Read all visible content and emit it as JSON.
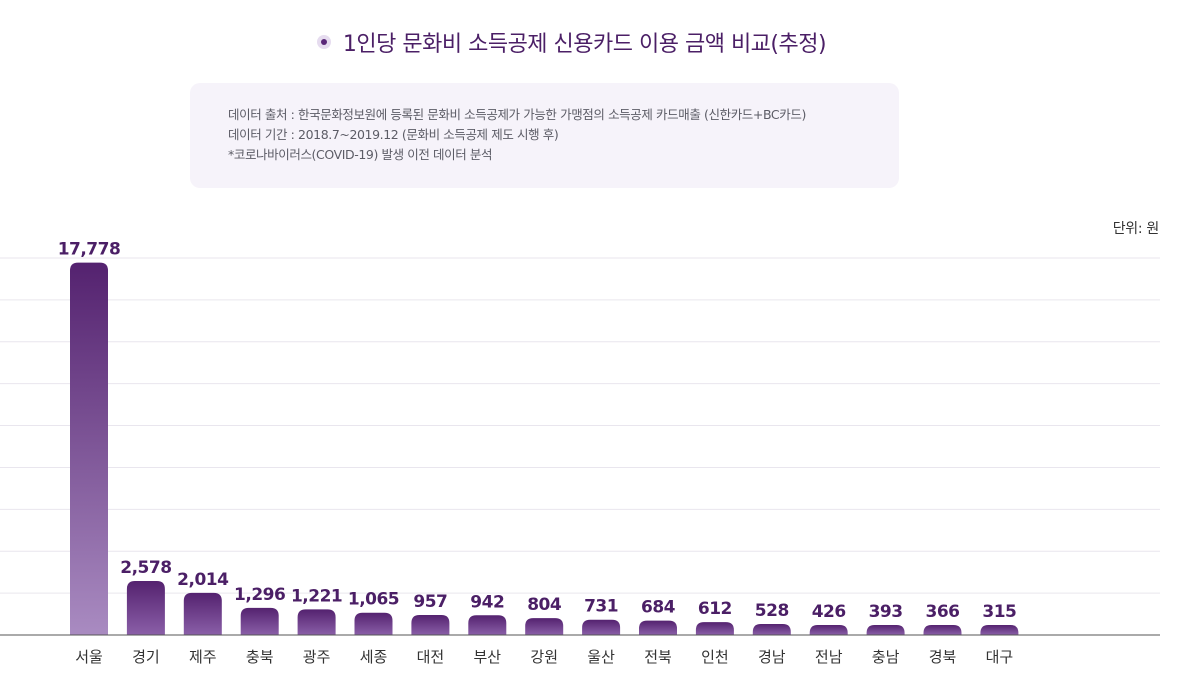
{
  "title": "1인당 문화비 소득공제 신용카드 이용 금액 비교(추정)",
  "source": {
    "line1": "데이터 출처 : 한국문화정보원에 등록된 문화비 소득공제가 가능한 가맹점의 소득공제 카드매출 (신한카드+BC카드)",
    "line2": "데이터 기간 : 2018.7~2019.12 (문화비 소득공제 제도 시행 후)",
    "line3": "*코로나바이러스(COVID-19) 발생 이전 데이터 분석"
  },
  "unit_label": "단위: 원",
  "colors": {
    "title": "#4b1f66",
    "bar_top": "#54226f",
    "bar_bottom_tall": "#a98bc1",
    "bar_bottom_short": "#8a5fa8",
    "grid": "#e9e6ee",
    "axis": "#555555"
  },
  "chart_data": {
    "type": "bar",
    "categories": [
      "서울",
      "경기",
      "제주",
      "충북",
      "광주",
      "세종",
      "대전",
      "부산",
      "강원",
      "울산",
      "전북",
      "인천",
      "경남",
      "전남",
      "충남",
      "경북",
      "대구"
    ],
    "values": [
      17778,
      2578,
      2014,
      1296,
      1221,
      1065,
      957,
      942,
      804,
      731,
      684,
      612,
      528,
      426,
      393,
      366,
      315
    ],
    "value_labels": [
      "17,778",
      "2,578",
      "2,014",
      "1,296",
      "1,221",
      "1,065",
      "957",
      "942",
      "804",
      "731",
      "684",
      "612",
      "528",
      "426",
      "393",
      "366",
      "315"
    ],
    "ylim": [
      0,
      18000
    ],
    "grid": true
  }
}
